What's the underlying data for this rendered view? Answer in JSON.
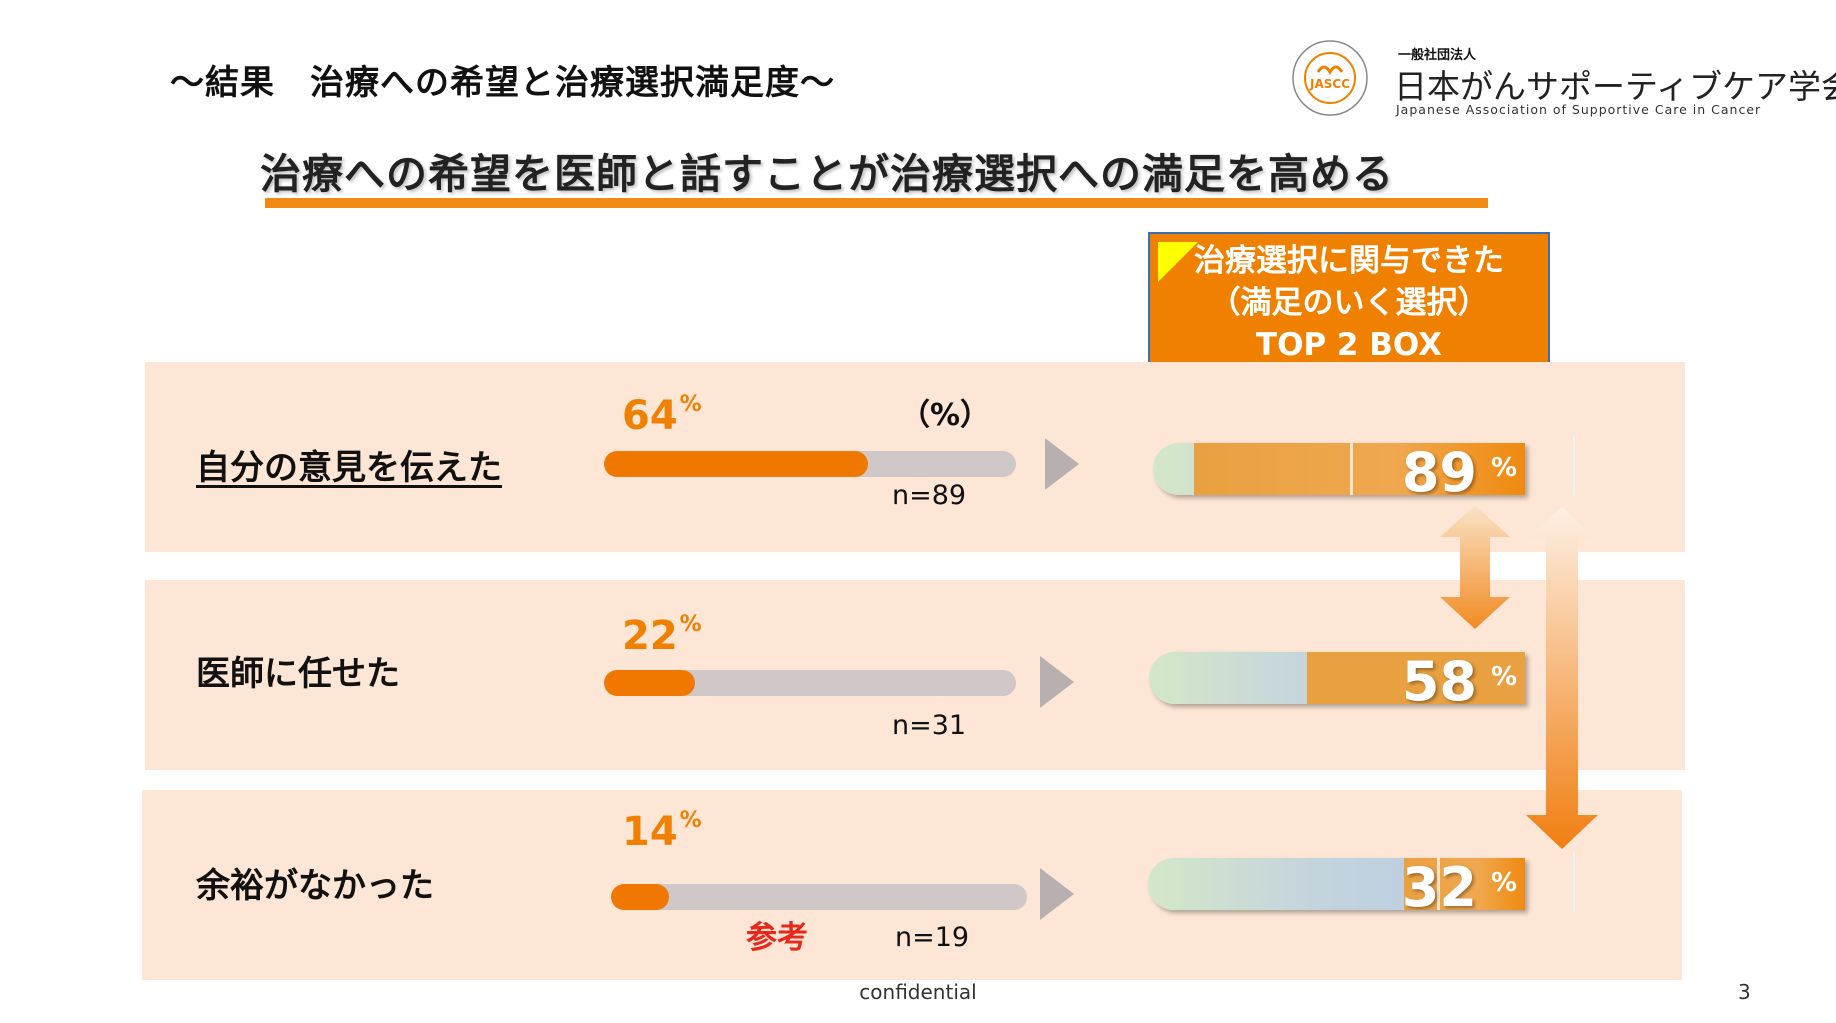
{
  "slide_title": "〜結果　治療への希望と治療選択満足度〜",
  "headline": "治療への希望を医師と話すことが治療選択への満足を高める",
  "logo": {
    "small": "一般社団法人",
    "name": "日本がんサポーティブケア学会",
    "english": "Japanese Association of Supportive Care in Cancer",
    "seal": "JASCC"
  },
  "top2_box": {
    "line1": "治療選択に関与できた",
    "line2": "（満足のいく選択）",
    "line3": "TOP 2 BOX"
  },
  "pct_unit": "（%）",
  "sanko": "参考",
  "footer": "confidential",
  "page_number": "3",
  "chart_data": {
    "type": "bar",
    "percent_symbol": "%",
    "categories": [
      "自分の意見を伝えた",
      "医師に任せた",
      "余裕がなかった"
    ],
    "series": [
      {
        "name": "",
        "values": [
          64,
          22,
          14
        ]
      },
      {
        "name": "治療選択に関与できた（満足のいく選択）TOP 2 BOX",
        "values": [
          89,
          58,
          32
        ]
      }
    ],
    "pct_labels": [
      "64",
      "22",
      "14"
    ],
    "n_labels": [
      "n=89",
      "n=31",
      "n=19"
    ],
    "result_labels": [
      "89",
      "58",
      "32"
    ],
    "ylim": [
      0,
      100
    ],
    "colors": {
      "bar": "#f07800",
      "track": "#cfc8c6",
      "top2": "#e8a040",
      "band": "#fde6d6"
    }
  }
}
